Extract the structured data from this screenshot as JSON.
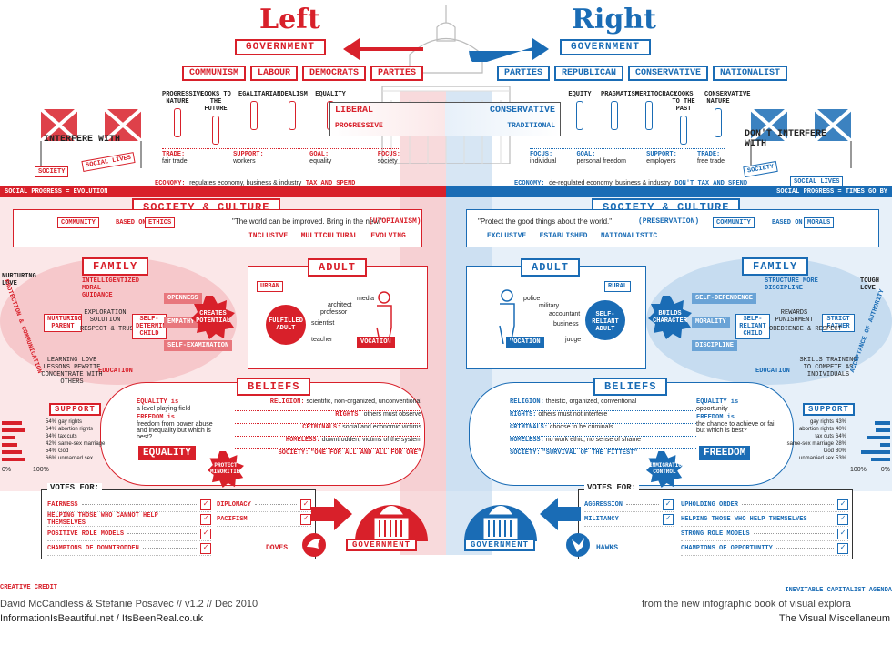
{
  "header": {
    "left_title": "Left",
    "right_title": "Right",
    "government_label": "GOVERNMENT",
    "left_parties": [
      "COMMUNISM",
      "LABOUR",
      "DEMOCRATS",
      "PARTIES"
    ],
    "right_parties": [
      "PARTIES",
      "REPUBLICAN",
      "CONSERVATIVE",
      "NATIONALIST"
    ],
    "left_values": [
      "PROGRESSIVE NATURE",
      "LOOKS TO THE FUTURE",
      "EGALITARIAN",
      "IDEALISM",
      "EQUALITY"
    ],
    "right_values": [
      "EQUITY",
      "PRAGMATISM",
      "MERITOCRACY",
      "LOOKS TO THE PAST",
      "CONSERVATIVE NATURE"
    ],
    "liberal": "LIBERAL",
    "progressive": "PROGRESSIVE",
    "conservative": "CONSERVATIVE",
    "traditional": "TRADITIONAL",
    "interfere_with": "INTERFERE WITH",
    "dont_interfere_with": "DON'T INTERFERE WITH",
    "society_tag": "SOCIETY",
    "social_lives_tag": "SOCIAL LIVES"
  },
  "left_row": [
    {
      "k": "TRADE:",
      "v": "fair trade"
    },
    {
      "k": "SUPPORT:",
      "v": "workers"
    },
    {
      "k": "GOAL:",
      "v": "equality"
    },
    {
      "k": "FOCUS:",
      "v": "society"
    }
  ],
  "right_row": [
    {
      "k": "FOCUS:",
      "v": "individual"
    },
    {
      "k": "GOAL:",
      "v": "personal freedom"
    },
    {
      "k": "SUPPORT:",
      "v": "employers"
    },
    {
      "k": "TRADE:",
      "v": "free trade"
    }
  ],
  "economy": {
    "left_key": "ECONOMY:",
    "left": "regulates economy, business & industry",
    "left_tag": "TAX AND SPEND",
    "right_key": "ECONOMY:",
    "right": "de-regulated economy, business & industry",
    "right_tag": "DON'T TAX AND SPEND"
  },
  "social_progress": {
    "left": "SOCIAL PROGRESS = EVOLUTION",
    "right": "SOCIAL PROGRESS = TIMES GO BY"
  },
  "society_culture": {
    "title": "SOCIETY & CULTURE",
    "left_community": "COMMUNITY",
    "based_on": "BASED ON",
    "left_basis": "ETHICS",
    "left_quote": "\"The world can be improved. Bring in the new.\"",
    "left_quote_tag": "(UTOPIANISM)",
    "left_traits": "INCLUSIVE   MULTICULTURAL   EVOLVING",
    "right_quote": "\"Protect the good things about the world.\"",
    "right_quote_tag": "(PRESERVATION)",
    "right_traits": "EXCLUSIVE   ESTABLISHED   NATIONALISTIC",
    "right_community": "COMMUNITY",
    "right_basis": "MORALS"
  },
  "family": {
    "title": "FAMILY",
    "left_nurturing": "NURTURING LOVE",
    "left_parent": "NURTURING PARENT",
    "left_items": [
      "INTELLIGENTIZED MORAL GUIDANCE",
      "EXPLORATION SOLUTION",
      "RESPECT & TRUST",
      "SELF-DETERMINED CHILD",
      "OPENNESS",
      "EMPATHY",
      "SELF-EXAMINATION",
      "EDUCATION",
      "LEARNING LOVE LESSONS REWRITE CONCENTRATE WITH OTHERS"
    ],
    "left_creates": "CREATES POTENTIAL",
    "left_side": "PROTECTION & COMMUNICATION",
    "right_love": "TOUGH LOVE",
    "right_parent": "STRICT FATHER",
    "right_items": [
      "STRUCTURE MORE DISCIPLINE",
      "SELF-DEPENDENCE",
      "MORALITY",
      "SELF-RELIANT CHILD",
      "DISCIPLINE",
      "REWARDS PUNISHMENT",
      "OBEDIENCE & RESPECT",
      "EDUCATION",
      "SKILLS TRAINING TO COMPETE AS INDIVIDUALS"
    ],
    "right_builds": "BUILDS CHARACTER",
    "right_side": "ACCEPTANCE OF AUTHORITY"
  },
  "adult": {
    "title": "ADULT",
    "left_tag": "URBAN",
    "left_adult": "FULFILLED ADULT",
    "left_jobs": [
      "media",
      "architect",
      "professor",
      "scientist",
      "teacher"
    ],
    "left_vacation": "VOCATION",
    "right_tag": "RURAL",
    "right_adult": "SELF-RELIANT ADULT",
    "right_jobs": [
      "police",
      "military",
      "accountant",
      "business",
      "judge"
    ],
    "right_vacation": "VOCATION"
  },
  "beliefs": {
    "title": "BELIEFS",
    "left_equality_k": "EQUALITY is",
    "left_equality_v": "a level playing field",
    "left_freedom_k": "FREEDOM is",
    "left_freedom_v": "freedom from power abuse and inequality but which is best?",
    "left_badge": "EQUALITY",
    "left_protect": "PROTECT MINORITIES",
    "left_lines": [
      {
        "k": "RELIGION:",
        "v": "scientific, non-organized, unconventional"
      },
      {
        "k": "RIGHTS:",
        "v": "others must observe"
      },
      {
        "k": "CRIMINALS:",
        "v": "social and economic victims"
      },
      {
        "k": "HOMELESS:",
        "v": "downtrodden, victims of the system"
      },
      {
        "k": "SOCIETY:",
        "v": "\"ONE FOR ALL AND ALL FOR ONE\""
      }
    ],
    "right_lines": [
      {
        "k": "RELIGION:",
        "v": "theistic, organized, conventional"
      },
      {
        "k": "RIGHTS:",
        "v": "others must not interfere"
      },
      {
        "k": "CRIMINALS:",
        "v": "choose to be criminals"
      },
      {
        "k": "HOMELESS:",
        "v": "no work ethic, no sense of shame"
      },
      {
        "k": "SOCIETY:",
        "v": "\"SURVIVAL OF THE FITTEST\""
      }
    ],
    "right_equality_k": "EQUALITY is",
    "right_equality_v": "opportunity",
    "right_freedom_k": "FREEDOM is",
    "right_freedom_v": "the chance to achieve or fail but which is best?",
    "right_badge": "FREEDOM",
    "right_immigration": "IMMIGRATION CONTROL"
  },
  "support": {
    "title": "SUPPORT",
    "left_items": [
      {
        "label": "gay rights",
        "pct": 54
      },
      {
        "label": "abortion rights",
        "pct": 64
      },
      {
        "label": "tax cuts",
        "pct": 34
      },
      {
        "label": "same-sex marriage",
        "pct": 42
      },
      {
        "label": "God",
        "pct": 54
      },
      {
        "label": "unmarried sex",
        "pct": 66
      }
    ],
    "right_items": [
      {
        "label": "gay rights",
        "pct": 43
      },
      {
        "label": "abortion rights",
        "pct": 40
      },
      {
        "label": "tax cuts",
        "pct": 64
      },
      {
        "label": "same-sex marriage",
        "pct": 28
      },
      {
        "label": "God",
        "pct": 80
      },
      {
        "label": "unmarried sex",
        "pct": 53
      }
    ],
    "axis_min": "0%",
    "axis_max": "100%"
  },
  "votes": {
    "title": "VOTES FOR:",
    "left_col1": [
      "FAIRNESS",
      "HELPING THOSE WHO CANNOT HELP THEMSELVES",
      "POSITIVE ROLE MODELS",
      "CHAMPIONS OF DOWNTRODDEN"
    ],
    "left_col2": [
      "DIPLOMACY",
      "PACIFISM"
    ],
    "right_col1": [
      "AGGRESSION",
      "MILITANCY"
    ],
    "right_col2": [
      "UPHOLDING ORDER",
      "HELPING THOSE WHO HELP THEMSELVES",
      "STRONG ROLE MODELS",
      "CHAMPIONS OF OPPORTUNITY"
    ],
    "doves": "DOVES",
    "hawks": "HAWKS",
    "government": "GOVERNMENT",
    "check": "✓"
  },
  "footer": {
    "credit_label": "CREATIVE CREDIT",
    "credit_line": "David McCandless & Stefanie Posavec // v1.2 // Dec 2010",
    "credit_urls": "InformationIsBeautiful.net / ItsBeenReal.co.uk",
    "right_label": "INEVITABLE CAPITALIST AGENDA",
    "right_line": "from the new infographic book of visual explora",
    "right_book": "The Visual Miscellaneum"
  },
  "colors": {
    "red": "#d8202a",
    "blue": "#1a6cb5",
    "pink": "#f6d6d8",
    "lightblue": "#d6e6f4"
  }
}
